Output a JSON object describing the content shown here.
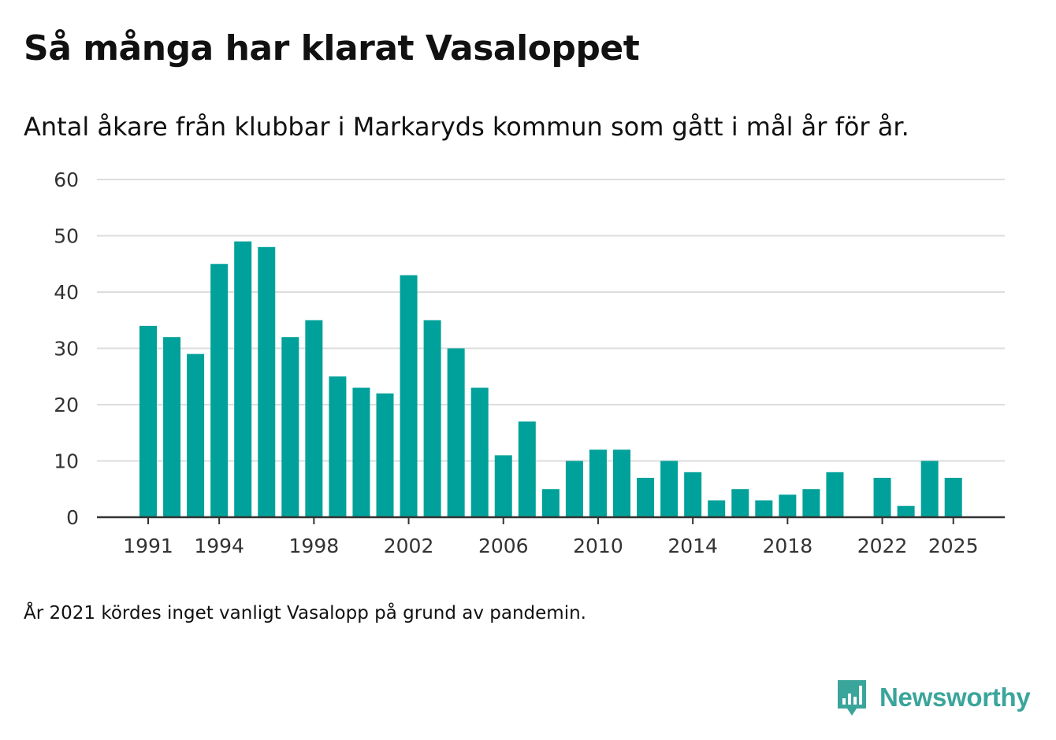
{
  "title": "Så många har klarat Vasaloppet",
  "subtitle": "Antal åkare från klubbar i Markaryds kommun som gått i mål år för år.",
  "footnote": "År 2021 kördes inget vanligt Vasalopp på grund av pandemin.",
  "brand": {
    "name": "Newsworthy",
    "color": "#3aa59b"
  },
  "colors": {
    "bar": "#00a19a",
    "grid": "#dddddd",
    "axis": "#333333"
  },
  "chart_data": {
    "type": "bar",
    "title": "Så många har klarat Vasaloppet",
    "xlabel": "",
    "ylabel": "",
    "ylim": [
      0,
      60
    ],
    "yticks": [
      0,
      10,
      20,
      30,
      40,
      50,
      60
    ],
    "xticks": [
      "1991",
      "1994",
      "1998",
      "2002",
      "2006",
      "2010",
      "2014",
      "2018",
      "2022",
      "2025"
    ],
    "grid": true,
    "categories": [
      "1991",
      "1992",
      "1993",
      "1994",
      "1995",
      "1996",
      "1997",
      "1998",
      "1999",
      "2000",
      "2001",
      "2002",
      "2003",
      "2004",
      "2005",
      "2006",
      "2007",
      "2008",
      "2009",
      "2010",
      "2011",
      "2012",
      "2013",
      "2014",
      "2015",
      "2016",
      "2017",
      "2018",
      "2019",
      "2020",
      "2021",
      "2022",
      "2023",
      "2024",
      "2025"
    ],
    "values": [
      34,
      32,
      29,
      45,
      49,
      48,
      32,
      35,
      25,
      23,
      22,
      43,
      35,
      30,
      23,
      11,
      17,
      5,
      10,
      12,
      12,
      7,
      10,
      8,
      3,
      5,
      3,
      4,
      5,
      8,
      null,
      7,
      2,
      10,
      7
    ]
  }
}
